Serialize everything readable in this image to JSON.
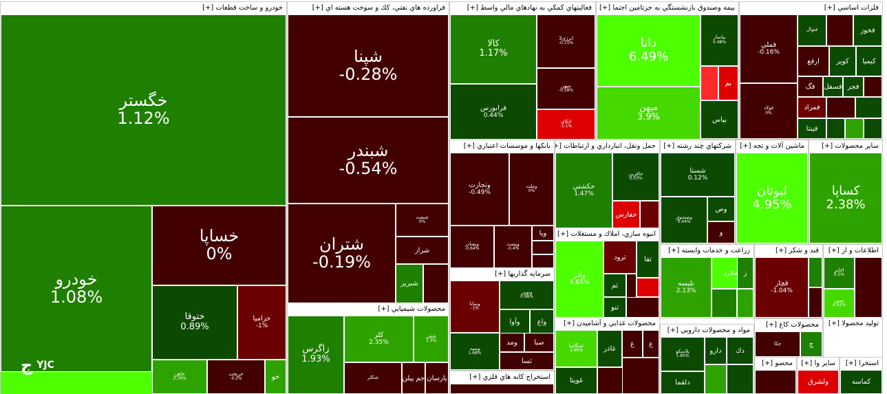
{
  "colors": {
    "dk": "#420000",
    "dr": "#6b0000",
    "rd": "#dd0000",
    "rb": "#ff2a2a",
    "dg": "#0b4a00",
    "g": "#1f7f00",
    "mg": "#2ea300",
    "lg": "#45d900",
    "bg": "#4dff00"
  },
  "logo": {
    "text": "YJC",
    "mark": "ج"
  },
  "sectors": [
    {
      "title": "خودرو و ساخت قطعات [+]"
    },
    {
      "title": "فراورده هاي نفتي، كك و سوخت هسته اي [+]"
    },
    {
      "title": "فعاليتهاي كمكي به نهادهاي مالي واسط [+]"
    },
    {
      "title": "بيمه وصندوق بازنشستگي به جزتامين اجتما [+]"
    },
    {
      "title": "فلزات اساسي [+]"
    },
    {
      "title": "بانكها و موسسات اعتباري [+]"
    },
    {
      "title": "حمل ونقل، انبارداري و ارتباطات [+]"
    },
    {
      "title": "شركتهاي چند رشته [+]"
    },
    {
      "title": "ماشين آلات و تجه [+]"
    },
    {
      "title": "ساير محصولات [+]"
    },
    {
      "title": "انبوه سازي، املاك و مستغلات [+]"
    },
    {
      "title": "زراعت و خدمات وابسته [+]"
    },
    {
      "title": "قند و شكر [+]"
    },
    {
      "title": "اطلاعات و ار [+]"
    },
    {
      "title": "سرمايه گذاريها [+]"
    },
    {
      "title": "محصولات غذايي و آشاميدن [+]"
    },
    {
      "title": "محصولات كاغ [+]"
    },
    {
      "title": "توليد محصولا [+]"
    },
    {
      "title": "مواد و محصولات دارويي [+]"
    },
    {
      "title": "محصولات شيميايي [+]"
    },
    {
      "title": "استخراج كانه هاي فلزي [+]"
    },
    {
      "title": "محصو [+]"
    },
    {
      "title": "ساير وا [+]"
    },
    {
      "title": "استخرا [+]"
    }
  ],
  "tiles": [
    {
      "name": "خگستر",
      "pct": "1.12%"
    },
    {
      "name": "خودرو",
      "pct": "1.08%"
    },
    {
      "name": "خساپا",
      "pct": "0%"
    },
    {
      "name": "ختوقا",
      "pct": "0.89%"
    },
    {
      "name": "خزاميا",
      "pct": "-1%"
    },
    {
      "name": "خاهن",
      "pct": "2.76%"
    },
    {
      "name": "خريخت",
      "pct": "-0.2%"
    },
    {
      "name": "خو",
      "pct": ""
    },
    {
      "name": "شپنا",
      "pct": "-0.28%"
    },
    {
      "name": "شبندر",
      "pct": "-0.54%"
    },
    {
      "name": "شتران",
      "pct": "-0.19%"
    },
    {
      "name": "شنفت",
      "pct": "0%"
    },
    {
      "name": "شراز",
      "pct": ""
    },
    {
      "name": "شبريز",
      "pct": ""
    },
    {
      "name": "كالا",
      "pct": "1.17%"
    },
    {
      "name": "فرابورس",
      "pct": "0.44%"
    },
    {
      "name": "انرژي3",
      "pct": "-0.15%"
    },
    {
      "name": "ميهن",
      "pct": "-0.58%"
    },
    {
      "name": "اتكاي",
      "pct": "-1.1%"
    },
    {
      "name": "دانا",
      "pct": "6.49%"
    },
    {
      "name": "ميهن",
      "pct": "3.9%"
    },
    {
      "name": "بپاسار",
      "pct": "0.48%"
    },
    {
      "name": "بم",
      "pct": ""
    },
    {
      "name": "بپاس",
      "pct": ""
    },
    {
      "name": "فملي",
      "pct": "-0.16%"
    },
    {
      "name": "فولاد",
      "pct": "0%"
    },
    {
      "name": "فخوز",
      "pct": ""
    },
    {
      "name": "فنوال",
      "pct": ""
    },
    {
      "name": "كيميا",
      "pct": ""
    },
    {
      "name": "كوير",
      "pct": ""
    },
    {
      "name": "ارفع",
      "pct": ""
    },
    {
      "name": "فجر",
      "pct": ""
    },
    {
      "name": "فسفل",
      "pct": ""
    },
    {
      "name": "فگ",
      "pct": ""
    },
    {
      "name": "فمراد",
      "pct": ""
    },
    {
      "name": "فينتا",
      "pct": ""
    },
    {
      "name": "وتجارت",
      "pct": "-0.49%"
    },
    {
      "name": "وملت",
      "pct": "0%"
    },
    {
      "name": "وبصادر",
      "pct": "-0.64%"
    },
    {
      "name": "وپست",
      "pct": "-0.4%"
    },
    {
      "name": "ويا",
      "pct": ""
    },
    {
      "name": "حكشتي",
      "pct": "1.47%"
    },
    {
      "name": "حافرين",
      "pct": "0.03%"
    },
    {
      "name": "حفارس",
      "pct": ""
    },
    {
      "name": "شستا",
      "pct": "0.12%"
    },
    {
      "name": "وصندوق",
      "pct": "0.44%"
    },
    {
      "name": "وص",
      "pct": ""
    },
    {
      "name": "و",
      "pct": ""
    },
    {
      "name": "لبوتان",
      "pct": "4.95%"
    },
    {
      "name": "كساپا",
      "pct": "2.38%"
    },
    {
      "name": "وآذر",
      "pct": "4.65%"
    },
    {
      "name": "ثرود",
      "pct": ""
    },
    {
      "name": "ثفا",
      "pct": ""
    },
    {
      "name": "ثم",
      "pct": ""
    },
    {
      "name": "ثنو",
      "pct": ""
    },
    {
      "name": "زملارد",
      "pct": ""
    },
    {
      "name": "نليسه",
      "pct": "2.13%"
    },
    {
      "name": "ز",
      "pct": ""
    },
    {
      "name": "قچار",
      "pct": "-1.04%"
    },
    {
      "name": "اخابر",
      "pct": "0.5%"
    },
    {
      "name": "مبين",
      "pct": "4.52%"
    },
    {
      "name": "وسانا",
      "pct": "-1%"
    },
    {
      "name": "ونوين",
      "pct": "0.98%"
    },
    {
      "name": "وآوا",
      "pct": ""
    },
    {
      "name": "واع",
      "pct": ""
    },
    {
      "name": "وسپه",
      "pct": "1.68%"
    },
    {
      "name": "صبا",
      "pct": ""
    },
    {
      "name": "ومد",
      "pct": ""
    },
    {
      "name": "ثسا",
      "pct": ""
    },
    {
      "name": "غمگاسا",
      "pct": "3.66%"
    },
    {
      "name": "غاذر",
      "pct": ""
    },
    {
      "name": "غ",
      "pct": ""
    },
    {
      "name": "غويتا",
      "pct": ""
    },
    {
      "name": "ع",
      "pct": ""
    },
    {
      "name": "چكا",
      "pct": ""
    },
    {
      "name": "چ",
      "pct": ""
    },
    {
      "name": "پلاسكو",
      "pct": "1.85%"
    },
    {
      "name": "دارو",
      "pct": ""
    },
    {
      "name": "دلقما",
      "pct": ""
    },
    {
      "name": "دك",
      "pct": ""
    },
    {
      "name": "زاگرس",
      "pct": "1.93%"
    },
    {
      "name": "كلر",
      "pct": "2.35%"
    },
    {
      "name": "شفن",
      "pct": "1.3%"
    },
    {
      "name": "پارسان",
      "pct": ""
    },
    {
      "name": "جم پيلن",
      "pct": ""
    },
    {
      "name": "شكلر",
      "pct": ""
    },
    {
      "name": "كماسه",
      "pct": ""
    },
    {
      "name": "ولشرق",
      "pct": ""
    }
  ]
}
